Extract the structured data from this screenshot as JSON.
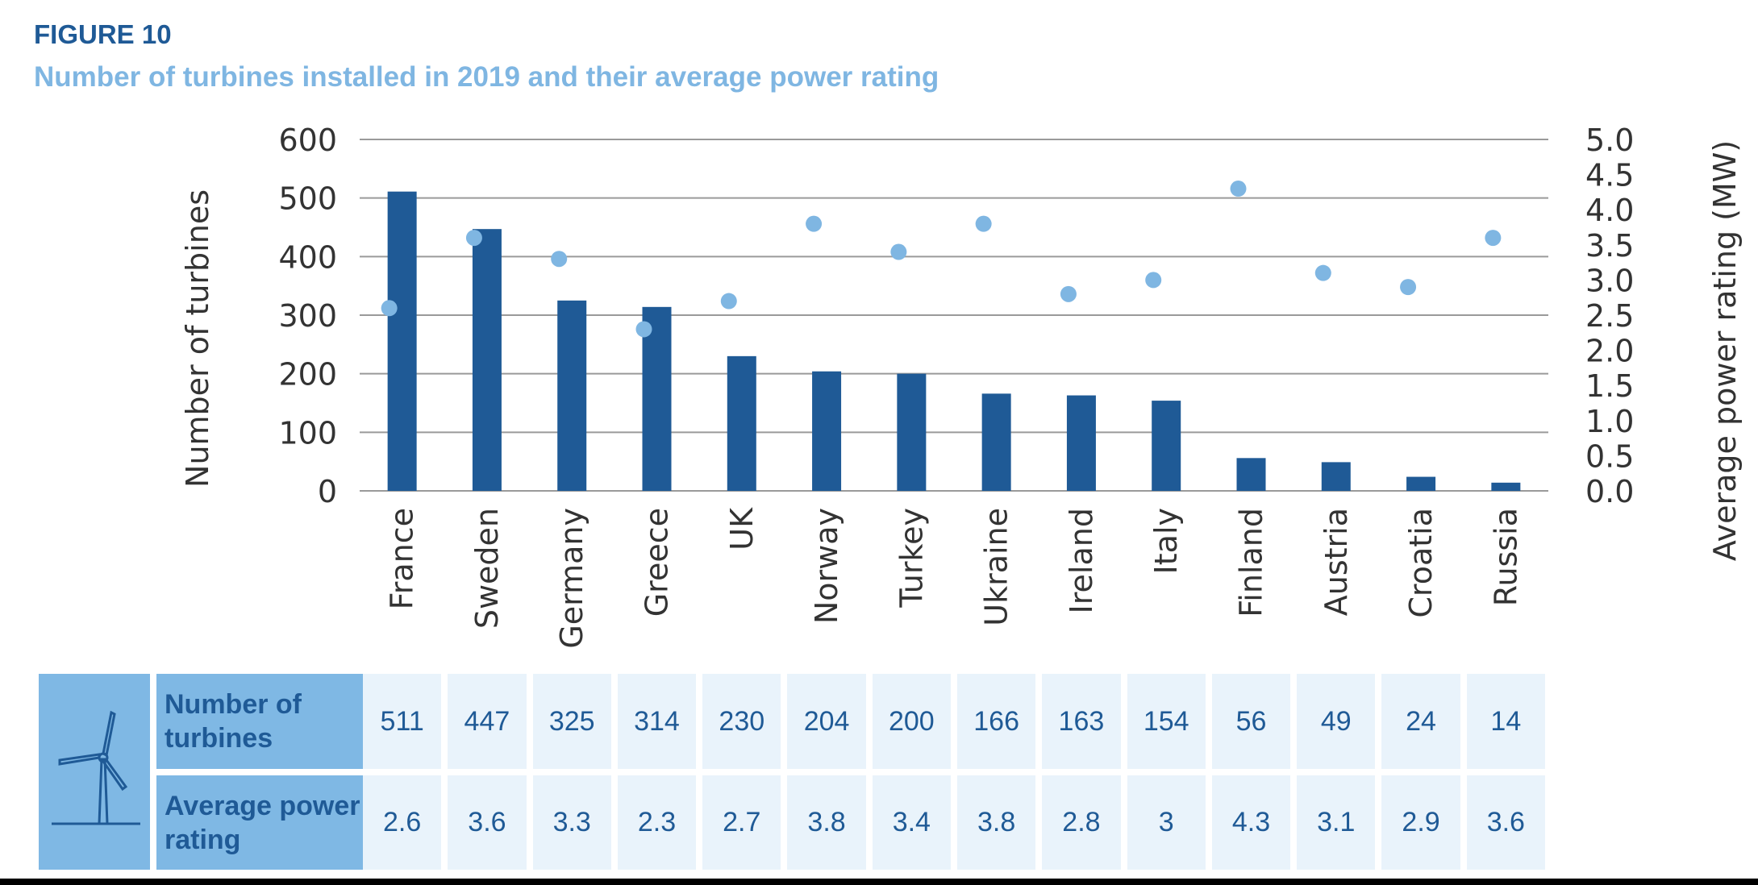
{
  "figure_label": "FIGURE 10",
  "title": "Number of turbines installed in 2019 and their average power rating",
  "icon": "wind-turbine-icon",
  "colors": {
    "bar": "#1f5a96",
    "dot": "#7fb6e2",
    "header": "#7fb8e4",
    "cell": "#e9f3fb"
  },
  "table": {
    "row1_label": "Number of turbines",
    "row2_label": "Average power rating"
  },
  "chart_data": {
    "type": "bar",
    "categories": [
      "France",
      "Sweden",
      "Germany",
      "Greece",
      "UK",
      "Norway",
      "Turkey",
      "Ukraine",
      "Ireland",
      "Italy",
      "Finland",
      "Austria",
      "Croatia",
      "Russia"
    ],
    "series": [
      {
        "values": [
          511,
          447,
          325,
          314,
          230,
          204,
          200,
          166,
          163,
          154,
          56,
          49,
          24,
          14
        ]
      },
      {
        "values": [
          "2.6",
          "3.6",
          "3.3",
          "2.3",
          "2.7",
          "3.8",
          "3.4",
          "3.8",
          "2.8",
          "3",
          "4.3",
          "3.1",
          "2.9",
          "3.6"
        ]
      }
    ],
    "ylabel": "Number of turbines",
    "y2label": "Average power rating (MW)",
    "ylim": [
      0,
      600
    ],
    "y2lim": [
      0,
      5
    ],
    "yticks": [
      "0",
      "100",
      "200",
      "300",
      "400",
      "500",
      "600"
    ],
    "y2ticks": [
      "0.0",
      "0.5",
      "1.0",
      "1.5",
      "2.0",
      "2.5",
      "3.0",
      "3.5",
      "4.0",
      "4.5",
      "5.0"
    ],
    "grid": true
  }
}
